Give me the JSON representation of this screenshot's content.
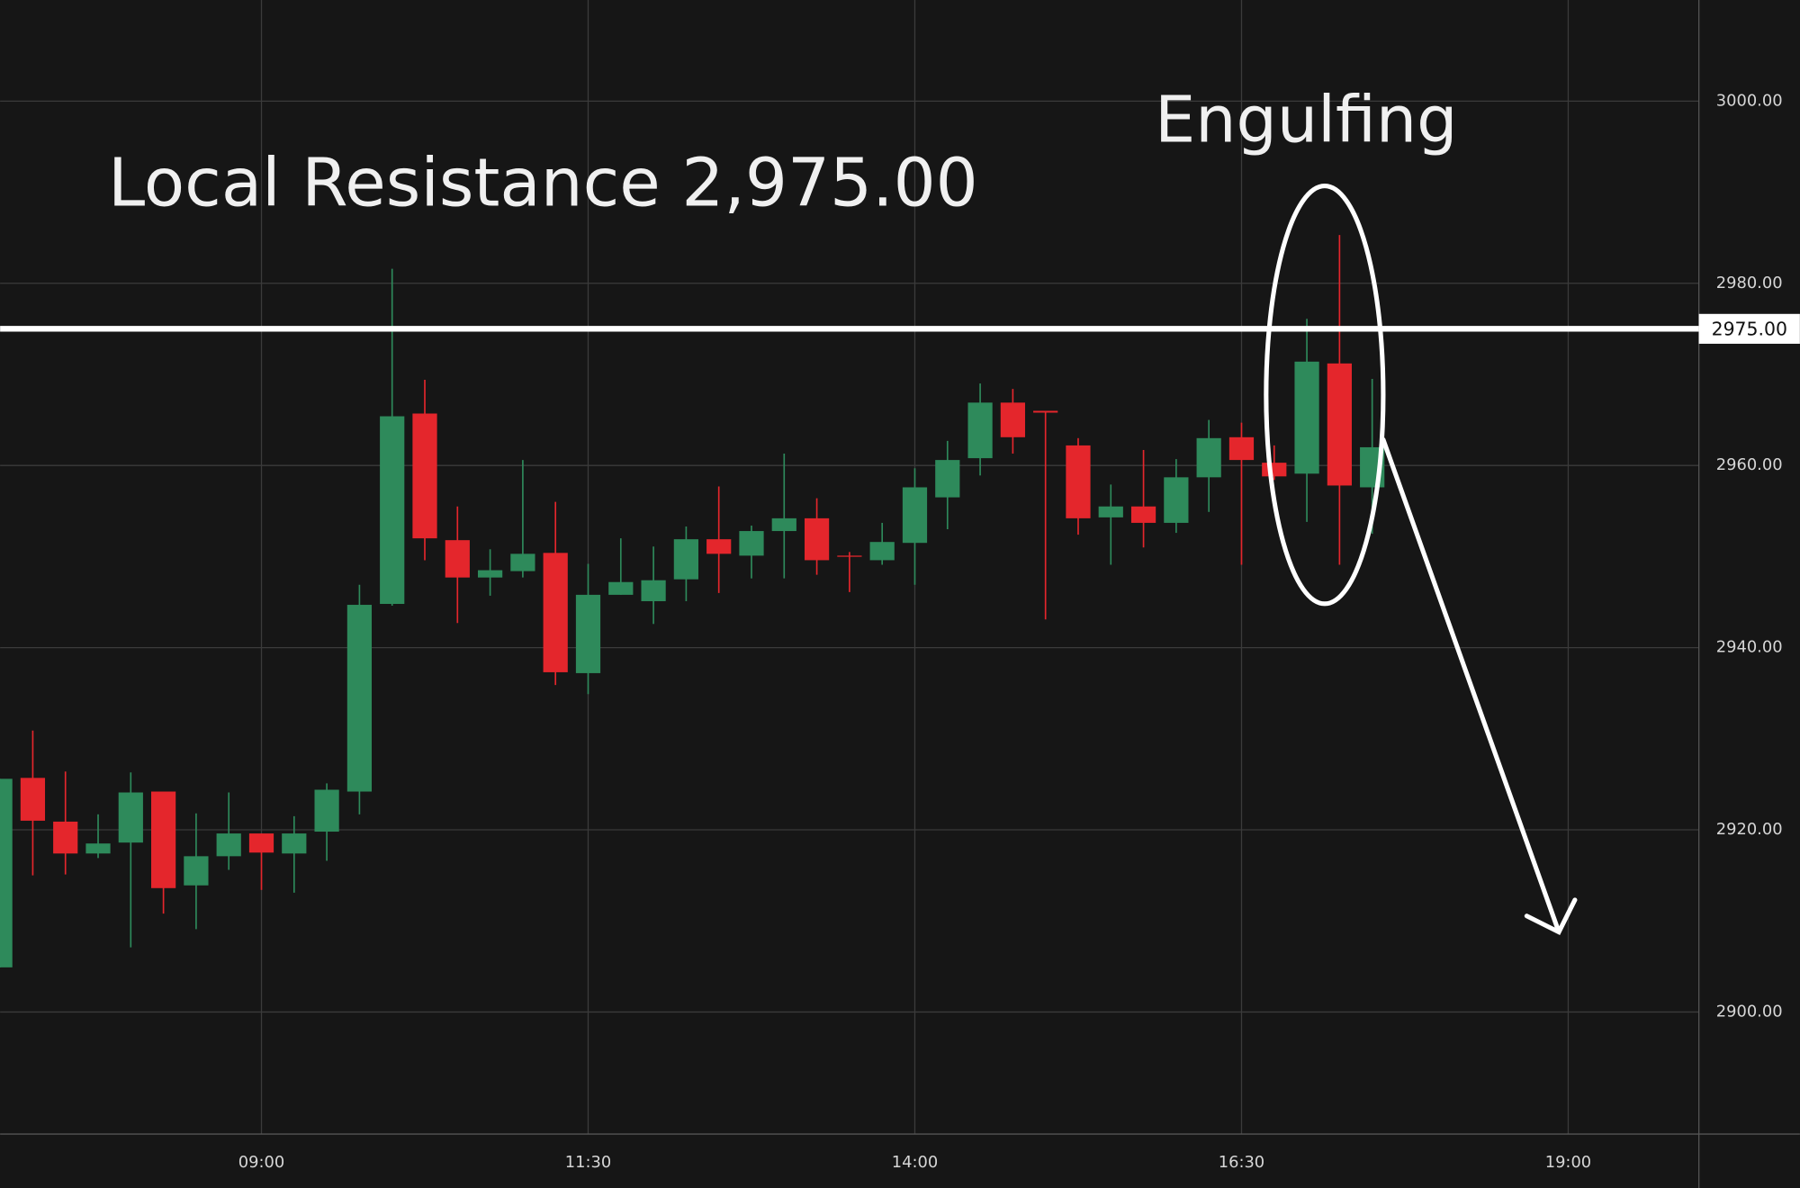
{
  "chart_data": {
    "type": "candlestick",
    "title": "Local Resistance 2,975.00",
    "annotation": "Engulfing",
    "resistance": {
      "value": 2975,
      "label": "2975.00"
    },
    "up_color": "#2e8a5b",
    "down_color": "#e4262c",
    "grid": true,
    "x": [
      "07:00",
      "07:15",
      "07:30",
      "07:45",
      "08:00",
      "08:15",
      "08:30",
      "08:45",
      "09:00",
      "09:15",
      "09:30",
      "09:45",
      "10:00",
      "10:15",
      "10:30",
      "10:45",
      "11:00",
      "11:15",
      "11:30",
      "11:45",
      "12:00",
      "12:15",
      "12:30",
      "12:45",
      "13:00",
      "13:15",
      "13:30",
      "13:45",
      "14:00",
      "14:15",
      "14:30",
      "14:45",
      "15:00",
      "15:15",
      "15:30",
      "15:45",
      "16:00",
      "16:15",
      "16:30",
      "16:45",
      "17:00",
      "17:15",
      "17:30"
    ],
    "open": [
      2904.9,
      2925.7,
      2920.9,
      2917.4,
      2918.6,
      2924.2,
      2913.9,
      2917.1,
      2919.6,
      2917.4,
      2919.8,
      2924.2,
      2944.8,
      2965.7,
      2951.8,
      2947.7,
      2948.4,
      2950.4,
      2937.2,
      2945.8,
      2945.1,
      2947.5,
      2951.9,
      2950.1,
      2952.8,
      2954.2,
      2950.1,
      2949.6,
      2951.5,
      2956.5,
      2960.8,
      2966.9,
      2966.0,
      2962.2,
      2954.3,
      2955.5,
      2953.7,
      2958.7,
      2963.1,
      2960.3,
      2959.1,
      2971.2,
      2957.6
    ],
    "high": [
      2925.6,
      2930.9,
      2926.4,
      2921.7,
      2926.3,
      2924.2,
      2921.8,
      2924.1,
      2919.6,
      2921.5,
      2925.1,
      2946.9,
      2981.6,
      2969.4,
      2955.5,
      2950.8,
      2960.6,
      2956.0,
      2949.2,
      2952.0,
      2951.1,
      2953.3,
      2957.7,
      2953.4,
      2961.3,
      2956.4,
      2950.5,
      2953.7,
      2959.7,
      2962.7,
      2969.0,
      2968.4,
      2966.0,
      2963.0,
      2957.9,
      2961.7,
      2960.7,
      2965.0,
      2964.7,
      2962.2,
      2976.1,
      2985.3,
      2969.5
    ],
    "low": [
      2904.9,
      2915.0,
      2915.1,
      2916.9,
      2907.1,
      2910.8,
      2909.1,
      2915.6,
      2913.4,
      2913.1,
      2916.6,
      2921.7,
      2944.6,
      2949.6,
      2942.7,
      2945.7,
      2947.7,
      2935.9,
      2934.9,
      2945.8,
      2942.6,
      2945.1,
      2946.0,
      2947.6,
      2947.6,
      2948.0,
      2946.1,
      2949.1,
      2946.9,
      2953.0,
      2958.9,
      2961.3,
      2943.1,
      2952.4,
      2949.1,
      2951.0,
      2952.6,
      2954.9,
      2949.1,
      2958.4,
      2953.8,
      2949.1,
      2952.5
    ],
    "close": [
      2925.6,
      2921.0,
      2917.4,
      2918.5,
      2924.1,
      2913.6,
      2917.1,
      2919.6,
      2917.5,
      2919.6,
      2924.4,
      2944.7,
      2965.4,
      2952.0,
      2947.7,
      2948.5,
      2950.3,
      2937.3,
      2945.8,
      2947.2,
      2947.4,
      2951.9,
      2950.3,
      2952.8,
      2954.2,
      2949.6,
      2950.0,
      2951.6,
      2957.6,
      2960.6,
      2966.9,
      2963.1,
      2965.8,
      2954.2,
      2955.5,
      2953.7,
      2958.7,
      2963.0,
      2960.6,
      2958.8,
      2971.4,
      2957.8,
      2962.0
    ],
    "xlim": [
      "07:00",
      "20:00"
    ],
    "xticks": [
      "09:00",
      "11:30",
      "14:00",
      "16:30",
      "19:00"
    ],
    "ylim": [
      2886.6,
      3011.1
    ],
    "yticks": [
      {
        "value": 2900,
        "label": "2900.00"
      },
      {
        "value": 2920,
        "label": "2920.00"
      },
      {
        "value": 2940,
        "label": "2940.00"
      },
      {
        "value": 2960,
        "label": "2960.00"
      },
      {
        "value": 2980,
        "label": "2980.00"
      },
      {
        "value": 3000,
        "label": "3000.00"
      }
    ]
  }
}
